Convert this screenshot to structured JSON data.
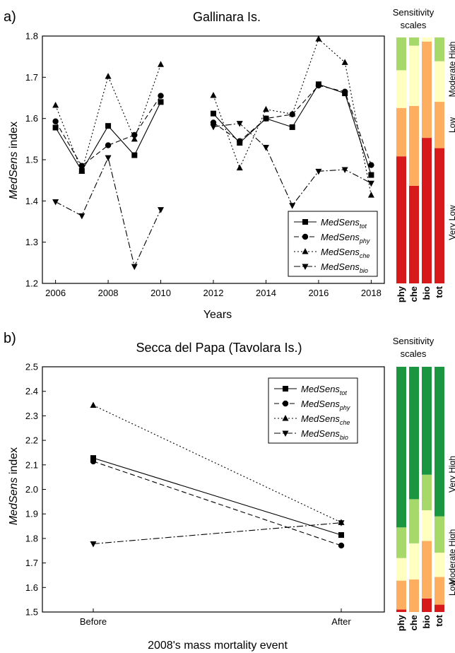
{
  "chart_data": [
    {
      "panel_label": "a)",
      "type": "line",
      "title": "Gallinara Is.",
      "xlabel": "Years",
      "ylabel_italic": "MedSens",
      "ylabel_rest": " index",
      "xlim": [
        2005.5,
        2018.5
      ],
      "ylim": [
        1.2,
        1.8
      ],
      "xticks": [
        "2006",
        "2008",
        "2010",
        "2012",
        "2014",
        "2016",
        "2018"
      ],
      "yticks": [
        "1.2",
        "1.3",
        "1.4",
        "1.5",
        "1.6",
        "1.7",
        "1.8"
      ],
      "series": [
        {
          "name_main": "MedSens",
          "name_sub": "tot",
          "marker": "square",
          "dash": "solid",
          "points": [
            [
              2006,
              1.578
            ],
            [
              2007,
              1.473
            ],
            [
              2008,
              1.582
            ],
            [
              2009,
              1.511
            ],
            [
              2010,
              1.64
            ],
            [
              2012,
              1.612
            ],
            [
              2013,
              1.541
            ],
            [
              2014,
              1.6
            ],
            [
              2015,
              1.579
            ],
            [
              2016,
              1.683
            ],
            [
              2017,
              1.661
            ],
            [
              2018,
              1.463
            ]
          ]
        },
        {
          "name_main": "MedSens",
          "name_sub": "phy",
          "marker": "circle",
          "dash": "dashed",
          "points": [
            [
              2006,
              1.593
            ],
            [
              2007,
              1.485
            ],
            [
              2008,
              1.535
            ],
            [
              2009,
              1.56
            ],
            [
              2010,
              1.655
            ],
            [
              2012,
              1.59
            ],
            [
              2013,
              1.545
            ],
            [
              2014,
              1.6
            ],
            [
              2015,
              1.61
            ],
            [
              2016,
              1.68
            ],
            [
              2017,
              1.665
            ],
            [
              2018,
              1.487
            ]
          ]
        },
        {
          "name_main": "MedSens",
          "name_sub": "che",
          "marker": "triangle-up",
          "dash": "dotted",
          "points": [
            [
              2006,
              1.632
            ],
            [
              2007,
              1.472
            ],
            [
              2008,
              1.702
            ],
            [
              2009,
              1.55
            ],
            [
              2010,
              1.731
            ],
            [
              2012,
              1.656
            ],
            [
              2013,
              1.48
            ],
            [
              2014,
              1.622
            ],
            [
              2015,
              1.611
            ],
            [
              2016,
              1.793
            ],
            [
              2017,
              1.736
            ],
            [
              2018,
              1.414
            ]
          ]
        },
        {
          "name_main": "MedSens",
          "name_sub": "bio",
          "marker": "triangle-down",
          "dash": "dashdot",
          "points": [
            [
              2006,
              1.398
            ],
            [
              2007,
              1.364
            ],
            [
              2008,
              1.505
            ],
            [
              2009,
              1.241
            ],
            [
              2010,
              1.379
            ],
            [
              2012,
              1.58
            ],
            [
              2013,
              1.588
            ],
            [
              2014,
              1.53
            ],
            [
              2015,
              1.389
            ],
            [
              2016,
              1.472
            ],
            [
              2017,
              1.476
            ],
            [
              2018,
              1.443
            ]
          ]
        }
      ],
      "scale": {
        "title_line1": "Sensitivity",
        "title_line2": "scales",
        "columns": [
          "phy",
          "che",
          "bio",
          "tot"
        ],
        "levels": [
          "Very Low",
          "Low",
          "Moderate High"
        ]
      }
    },
    {
      "panel_label": "b)",
      "type": "line",
      "title": "Secca del Papa (Tavolara Is.)",
      "xlabel": "2008's mass mortality event",
      "ylabel_italic": "MedSens",
      "ylabel_rest": " index",
      "categories": [
        "Before",
        "After"
      ],
      "ylim": [
        1.5,
        2.5
      ],
      "yticks": [
        "1.5",
        "1.6",
        "1.7",
        "1.8",
        "1.9",
        "2.0",
        "2.1",
        "2.2",
        "2.3",
        "2.4",
        "2.5"
      ],
      "series": [
        {
          "name_main": "MedSens",
          "name_sub": "tot",
          "marker": "square",
          "dash": "solid",
          "values": [
            2.128,
            1.814
          ]
        },
        {
          "name_main": "MedSens",
          "name_sub": "phy",
          "marker": "circle",
          "dash": "dashed",
          "values": [
            2.114,
            1.771
          ]
        },
        {
          "name_main": "MedSens",
          "name_sub": "che",
          "marker": "triangle-up",
          "dash": "dotted",
          "values": [
            2.343,
            1.865
          ]
        },
        {
          "name_main": "MedSens",
          "name_sub": "bio",
          "marker": "triangle-down",
          "dash": "dashdot",
          "values": [
            1.778,
            1.864
          ]
        }
      ],
      "scale": {
        "title_line1": "Sensitivity",
        "title_line2": "scales",
        "columns": [
          "phy",
          "che",
          "bio",
          "tot"
        ],
        "levels": [
          "Low",
          "Moderate High",
          "Very High"
        ]
      }
    }
  ],
  "colors": {
    "very_low": "#d7191c",
    "low": "#fdae61",
    "moderate": "#ffffbf",
    "high": "#a6d96a",
    "very_high": "#1a9641",
    "series": "#000000"
  },
  "scale_bands": {
    "a": [
      [
        [
          "very_low",
          1.2,
          1.51
        ],
        [
          "low",
          1.51,
          1.628
        ],
        [
          "moderate",
          1.628,
          1.72
        ],
        [
          "high",
          1.72,
          1.8
        ]
      ],
      [
        [
          "very_low",
          1.2,
          1.438
        ],
        [
          "low",
          1.438,
          1.633
        ],
        [
          "moderate",
          1.633,
          1.78
        ],
        [
          "high",
          1.78,
          1.8
        ]
      ],
      [
        [
          "very_low",
          1.2,
          1.555
        ],
        [
          "low",
          1.555,
          1.79
        ],
        [
          "moderate",
          1.79,
          1.8
        ]
      ],
      [
        [
          "very_low",
          1.2,
          1.53
        ],
        [
          "low",
          1.53,
          1.643
        ],
        [
          "moderate",
          1.643,
          1.742
        ],
        [
          "high",
          1.742,
          1.8
        ]
      ]
    ],
    "b": [
      [
        [
          "very_low",
          1.5,
          1.51
        ],
        [
          "low",
          1.51,
          1.628
        ],
        [
          "moderate",
          1.628,
          1.72
        ],
        [
          "high",
          1.72,
          1.845
        ],
        [
          "very_high",
          1.845,
          2.5
        ]
      ],
      [
        [
          "low",
          1.5,
          1.633
        ],
        [
          "moderate",
          1.633,
          1.78
        ],
        [
          "high",
          1.78,
          1.96
        ],
        [
          "very_high",
          1.96,
          2.5
        ]
      ],
      [
        [
          "very_low",
          1.5,
          1.555
        ],
        [
          "low",
          1.555,
          1.79
        ],
        [
          "moderate",
          1.79,
          1.915
        ],
        [
          "high",
          1.915,
          2.06
        ],
        [
          "very_high",
          2.06,
          2.5
        ]
      ],
      [
        [
          "very_low",
          1.5,
          1.53
        ],
        [
          "low",
          1.53,
          1.643
        ],
        [
          "moderate",
          1.643,
          1.742
        ],
        [
          "high",
          1.742,
          1.89
        ],
        [
          "very_high",
          1.89,
          2.5
        ]
      ]
    ]
  }
}
